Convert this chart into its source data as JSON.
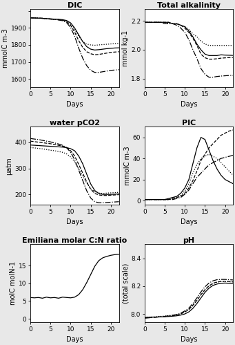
{
  "title_fontsize": 8,
  "label_fontsize": 7,
  "tick_fontsize": 6.5,
  "fig_bg": "#e8e8e8",
  "axes_bg": "white",
  "line_lw": 0.9,
  "days": [
    0,
    1,
    2,
    3,
    4,
    5,
    6,
    7,
    8,
    9,
    10,
    11,
    12,
    13,
    14,
    15,
    16,
    17,
    18,
    19,
    20,
    21,
    22
  ],
  "subplots": [
    {
      "title": "DIC",
      "ylabel": "mmolC m-3",
      "ylim": [
        1550,
        2010
      ],
      "yticks": [
        1600,
        1700,
        1800,
        1900,
        2000
      ],
      "ytick_labels": [
        "1600",
        "1700",
        "1800",
        "1900",
        ""
      ],
      "model": [
        1960,
        1959,
        1958,
        1957,
        1955,
        1954,
        1952,
        1951,
        1949,
        1944,
        1930,
        1900,
        1860,
        1820,
        1790,
        1775,
        1770,
        1772,
        1775,
        1778,
        1780,
        1782,
        1783
      ],
      "meso4": [
        1960,
        1959,
        1958,
        1957,
        1955,
        1953,
        1951,
        1949,
        1947,
        1940,
        1922,
        1892,
        1852,
        1820,
        1805,
        1800,
        1798,
        1800,
        1802,
        1804,
        1806,
        1808,
        1810
      ],
      "meso5": [
        1960,
        1959,
        1958,
        1957,
        1955,
        1953,
        1951,
        1949,
        1946,
        1938,
        1916,
        1876,
        1826,
        1786,
        1760,
        1748,
        1742,
        1744,
        1748,
        1752,
        1756,
        1758,
        1760
      ],
      "meso6": [
        1960,
        1959,
        1958,
        1957,
        1954,
        1952,
        1950,
        1947,
        1943,
        1932,
        1902,
        1852,
        1782,
        1722,
        1678,
        1650,
        1638,
        1638,
        1642,
        1646,
        1650,
        1652,
        1654
      ]
    },
    {
      "title": "Total alkalinity",
      "ylabel": "mmol kg-1",
      "ylim": [
        1.74,
        2.28
      ],
      "yticks": [
        1.8,
        2.0,
        2.2
      ],
      "ytick_labels": [
        "1.8",
        "2.0",
        "2.2"
      ],
      "model": [
        2.19,
        2.19,
        2.19,
        2.19,
        2.19,
        2.19,
        2.19,
        2.18,
        2.18,
        2.17,
        2.16,
        2.13,
        2.09,
        2.04,
        2.0,
        1.97,
        1.96,
        1.96,
        1.96,
        1.965,
        1.963,
        1.962,
        1.961
      ],
      "meso4": [
        2.19,
        2.19,
        2.19,
        2.19,
        2.19,
        2.19,
        2.18,
        2.18,
        2.18,
        2.17,
        2.16,
        2.14,
        2.11,
        2.09,
        2.06,
        2.04,
        2.03,
        2.03,
        2.03,
        2.03,
        2.03,
        2.03,
        2.03
      ],
      "meso5": [
        2.19,
        2.19,
        2.19,
        2.19,
        2.19,
        2.19,
        2.19,
        2.18,
        2.18,
        2.17,
        2.15,
        2.12,
        2.08,
        2.03,
        1.97,
        1.945,
        1.935,
        1.935,
        1.938,
        1.942,
        1.944,
        1.946,
        1.947
      ],
      "meso6": [
        2.19,
        2.19,
        2.19,
        2.19,
        2.19,
        2.18,
        2.18,
        2.18,
        2.17,
        2.15,
        2.12,
        2.07,
        2.0,
        1.94,
        1.87,
        1.83,
        1.81,
        1.81,
        1.815,
        1.818,
        1.82,
        1.822,
        1.823
      ]
    },
    {
      "title": "water pCO2",
      "ylabel": "μatm",
      "ylim": [
        160,
        460
      ],
      "yticks": [
        200,
        300,
        400
      ],
      "ytick_labels": [
        "200",
        "300",
        "400"
      ],
      "model": [
        390,
        389,
        388,
        387,
        386,
        385,
        384,
        383,
        382,
        380,
        376,
        368,
        348,
        318,
        278,
        240,
        215,
        204,
        200,
        200,
        200,
        201,
        202
      ],
      "meso4": [
        380,
        379,
        377,
        375,
        373,
        370,
        368,
        365,
        362,
        356,
        344,
        326,
        298,
        272,
        244,
        222,
        210,
        205,
        204,
        205,
        206,
        207,
        208
      ],
      "meso5": [
        405,
        403,
        401,
        399,
        397,
        395,
        392,
        389,
        386,
        380,
        368,
        348,
        316,
        282,
        248,
        220,
        204,
        198,
        196,
        196,
        197,
        198,
        199
      ],
      "meso6": [
        415,
        413,
        411,
        408,
        405,
        402,
        398,
        394,
        389,
        380,
        362,
        334,
        294,
        254,
        214,
        186,
        172,
        168,
        168,
        169,
        170,
        171,
        172
      ]
    },
    {
      "title": "PIC",
      "ylabel": "mmolC m-3",
      "ylim": [
        -4,
        70
      ],
      "yticks": [
        0,
        20,
        40,
        60
      ],
      "ytick_labels": [
        "0",
        "20",
        "40",
        "60"
      ],
      "model": [
        1,
        1,
        1,
        1,
        1,
        1,
        2,
        3,
        4,
        7,
        12,
        20,
        35,
        50,
        60,
        58,
        48,
        38,
        30,
        24,
        20,
        18,
        16
      ],
      "meso4": [
        1,
        1,
        1,
        1,
        1,
        1,
        1,
        2,
        3,
        5,
        9,
        16,
        26,
        34,
        40,
        42,
        44,
        42,
        40,
        36,
        32,
        28,
        24
      ],
      "meso5": [
        1,
        1,
        1,
        1,
        1,
        1,
        1,
        2,
        3,
        4,
        7,
        12,
        19,
        28,
        38,
        44,
        50,
        54,
        58,
        62,
        64,
        66,
        67
      ],
      "meso6": [
        1,
        1,
        1,
        1,
        1,
        1,
        1,
        1,
        2,
        3,
        6,
        10,
        16,
        22,
        26,
        30,
        34,
        36,
        38,
        40,
        41,
        42,
        43
      ]
    },
    {
      "title": "Emiliana molar C:N ratio",
      "ylabel": "molC molN-1",
      "ylim": [
        -1,
        21
      ],
      "yticks": [
        0,
        5,
        10,
        15
      ],
      "ytick_labels": [
        "0",
        "5",
        "10",
        "15"
      ],
      "model": [
        6.0,
        5.9,
        6.0,
        5.8,
        6.1,
        5.9,
        6.0,
        5.8,
        6.1,
        6.0,
        5.9,
        6.1,
        6.8,
        8.2,
        10.2,
        12.5,
        14.8,
        16.4,
        17.2,
        17.6,
        17.9,
        18.1,
        18.2
      ],
      "meso4": null,
      "meso5": null,
      "meso6": null
    },
    {
      "title": "pH",
      "ylabel": "(total scale)",
      "ylim": [
        7.94,
        8.5
      ],
      "yticks": [
        8.0,
        8.2,
        8.4
      ],
      "ytick_labels": [
        "8.0",
        "8.2",
        "8.4"
      ],
      "model": [
        7.975,
        7.976,
        7.977,
        7.978,
        7.979,
        7.98,
        7.982,
        7.984,
        7.987,
        7.992,
        8.0,
        8.015,
        8.04,
        8.075,
        8.115,
        8.155,
        8.185,
        8.205,
        8.215,
        8.22,
        8.222,
        8.22,
        8.218
      ],
      "meso4": [
        7.975,
        7.977,
        7.979,
        7.981,
        7.983,
        7.985,
        7.988,
        7.991,
        7.995,
        8.002,
        8.015,
        8.032,
        8.06,
        8.096,
        8.136,
        8.172,
        8.2,
        8.218,
        8.228,
        8.232,
        8.233,
        8.231,
        8.229
      ],
      "meso5": [
        7.972,
        7.974,
        7.976,
        7.978,
        7.98,
        7.982,
        7.985,
        7.988,
        7.992,
        8.0,
        8.014,
        8.032,
        8.062,
        8.098,
        8.138,
        8.174,
        8.202,
        8.22,
        8.23,
        8.234,
        8.235,
        8.233,
        8.231
      ],
      "meso6": [
        7.97,
        7.972,
        7.975,
        7.977,
        7.98,
        7.983,
        7.987,
        7.991,
        7.996,
        8.006,
        8.022,
        8.042,
        8.075,
        8.115,
        8.158,
        8.195,
        8.222,
        8.238,
        8.246,
        8.248,
        8.248,
        8.246,
        8.244
      ]
    }
  ]
}
